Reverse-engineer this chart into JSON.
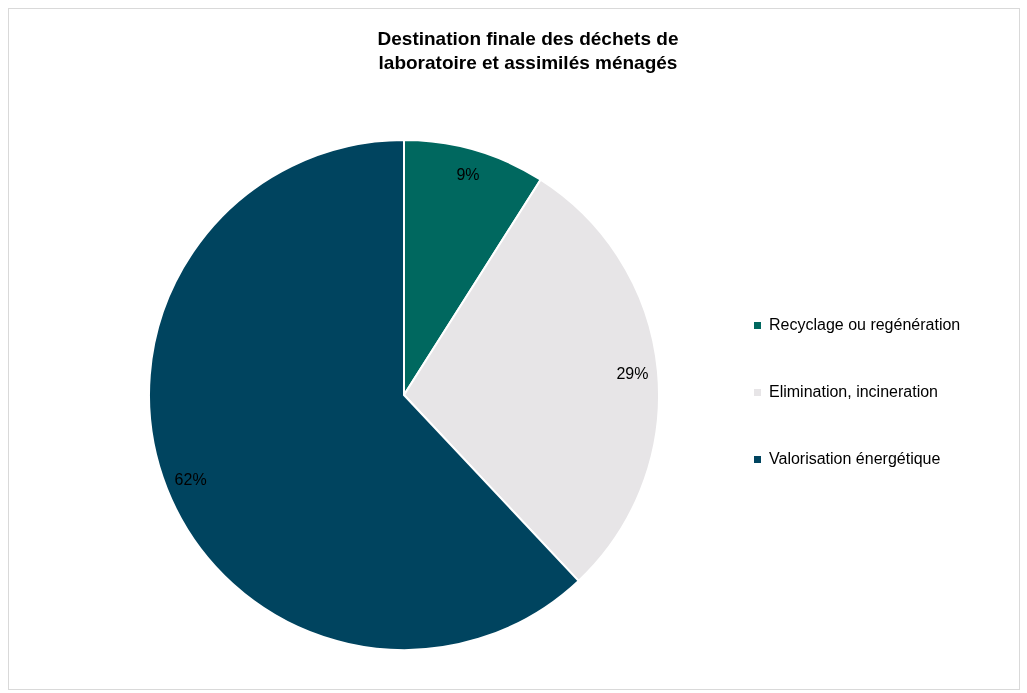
{
  "chart_data": {
    "type": "pie",
    "title": "Destination finale des déchets de laboratoire et assimilés ménagés",
    "categories": [
      "Recyclage ou regénération",
      "Elimination, incineration",
      "Valorisation énergétique"
    ],
    "values": [
      9,
      29,
      62
    ],
    "colors": [
      "#00685f",
      "#e7e5e7",
      "#00445f"
    ],
    "value_labels": [
      "9%",
      "29%",
      "62%"
    ],
    "legend": "right"
  }
}
